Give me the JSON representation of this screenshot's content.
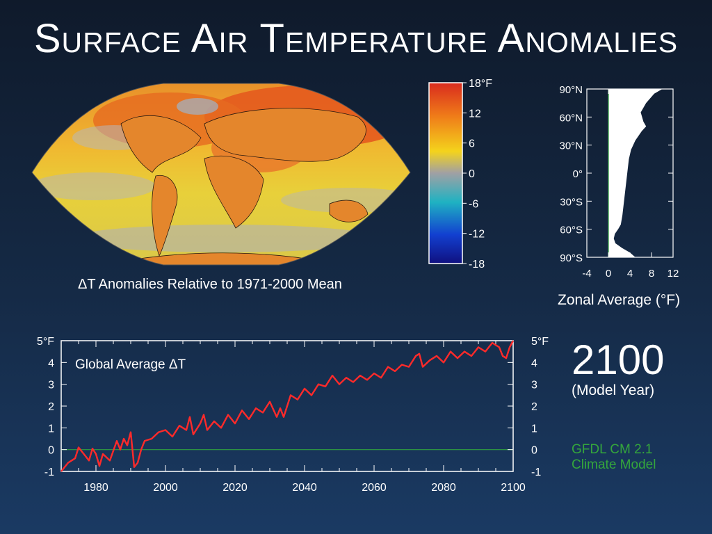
{
  "title": "Surface Air Temperature Anomalies",
  "map_caption": "ΔT Anomalies Relative to 1971-2000 Mean",
  "colorbar": {
    "ticks": [
      "18°F",
      "12",
      "6",
      "0",
      "-6",
      "-12",
      "-18"
    ],
    "stops": [
      "#d92b1e",
      "#ef7a19",
      "#f4d31c",
      "#a0a0a4",
      "#1fb2c2",
      "#1240d0",
      "#101080"
    ]
  },
  "zonal": {
    "ylabels": [
      "90°N",
      "60°N",
      "30°N",
      "0°",
      "30°S",
      "60°S",
      "90°S"
    ],
    "xlabels": [
      "-4",
      "0",
      "4",
      "8",
      "12"
    ],
    "caption": "Zonal Average (°F)"
  },
  "year": {
    "value": "2100",
    "label": "(Model Year)"
  },
  "model": {
    "line1": "GFDL CM 2.1",
    "line2": "Climate Model"
  },
  "colors": {
    "series": "#ff2a2a",
    "zero_line": "#2fa040",
    "model_text": "#34a63c"
  },
  "chart_data": [
    {
      "type": "line",
      "title": "Global Average ΔT",
      "xlabel": "",
      "ylabel": "",
      "xlim": [
        1970,
        2100
      ],
      "ylim": [
        -1,
        5
      ],
      "x_ticks": [
        "1980",
        "2000",
        "2020",
        "2040",
        "2060",
        "2080",
        "2100"
      ],
      "y_ticks_left": [
        "5°F",
        "4",
        "3",
        "2",
        "1",
        "0",
        "-1"
      ],
      "y_ticks_right": [
        "5°F",
        "4",
        "3",
        "2",
        "1",
        "0",
        "-1"
      ],
      "reference_line": 0,
      "series": [
        {
          "x": [
            1970,
            1972,
            1974,
            1975,
            1976,
            1978,
            1979,
            1980,
            1981,
            1982,
            1984,
            1986,
            1987,
            1988,
            1989,
            1990,
            1991,
            1992,
            1993,
            1994,
            1996,
            1998,
            2000,
            2002,
            2004,
            2006,
            2007,
            2008,
            2010,
            2011,
            2012,
            2014,
            2016,
            2018,
            2020,
            2022,
            2024,
            2026,
            2028,
            2030,
            2032,
            2033,
            2034,
            2036,
            2038,
            2040,
            2042,
            2044,
            2046,
            2048,
            2050,
            2052,
            2054,
            2056,
            2058,
            2060,
            2062,
            2064,
            2066,
            2068,
            2070,
            2072,
            2073,
            2074,
            2076,
            2078,
            2080,
            2082,
            2084,
            2086,
            2088,
            2090,
            2092,
            2094,
            2096,
            2097,
            2098,
            2099,
            2100
          ],
          "y": [
            -1.0,
            -0.6,
            -0.4,
            0.1,
            -0.1,
            -0.5,
            0.05,
            -0.2,
            -0.75,
            -0.2,
            -0.5,
            0.4,
            0.0,
            0.5,
            0.2,
            0.8,
            -0.8,
            -0.6,
            0.0,
            0.4,
            0.5,
            0.8,
            0.9,
            0.6,
            1.1,
            0.9,
            1.5,
            0.7,
            1.2,
            1.6,
            0.9,
            1.3,
            1.0,
            1.6,
            1.2,
            1.8,
            1.4,
            1.9,
            1.7,
            2.2,
            1.5,
            1.9,
            1.5,
            2.5,
            2.3,
            2.8,
            2.5,
            3.0,
            2.9,
            3.4,
            3.0,
            3.3,
            3.1,
            3.4,
            3.2,
            3.5,
            3.3,
            3.8,
            3.6,
            3.9,
            3.8,
            4.3,
            4.4,
            3.8,
            4.1,
            4.3,
            4.0,
            4.5,
            4.2,
            4.5,
            4.3,
            4.7,
            4.5,
            4.9,
            4.7,
            4.3,
            4.2,
            4.7,
            5.0
          ]
        }
      ]
    },
    {
      "type": "area",
      "title": "",
      "xlabel": "Zonal Average (°F)",
      "xlim": [
        -4,
        12
      ],
      "ylim": [
        -90,
        90
      ],
      "latitudes": [
        90,
        85,
        75,
        65,
        55,
        50,
        45,
        35,
        25,
        15,
        5,
        -5,
        -15,
        -25,
        -35,
        -45,
        -55,
        -60,
        -65,
        -70,
        -75,
        -80,
        -85,
        -90
      ],
      "values": [
        10.0,
        8.5,
        7.0,
        6.0,
        6.5,
        7.0,
        6.2,
        5.0,
        4.2,
        3.8,
        3.6,
        3.4,
        3.2,
        3.0,
        2.8,
        2.6,
        2.3,
        1.8,
        1.2,
        1.0,
        1.3,
        2.5,
        4.0,
        5.0
      ]
    }
  ]
}
